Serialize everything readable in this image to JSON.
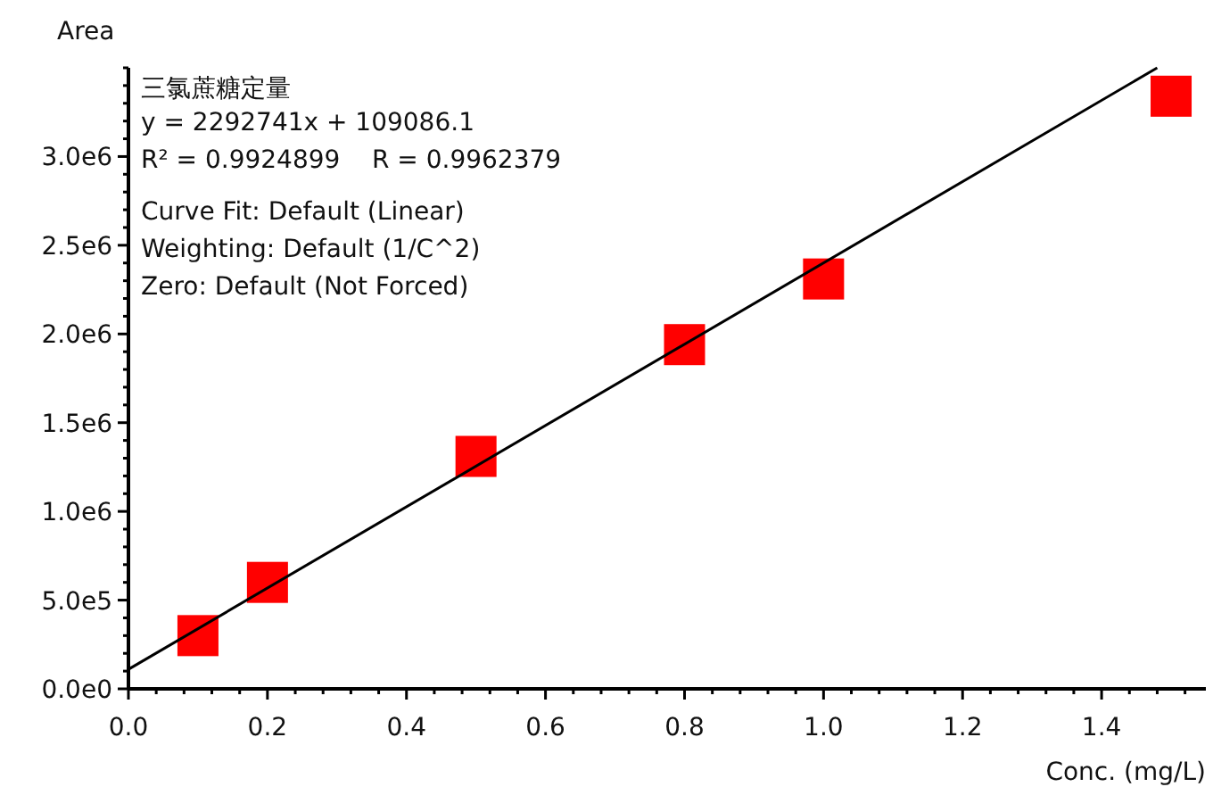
{
  "chart_data": {
    "type": "scatter",
    "title": "三氯蔗糖定量",
    "xlabel": "Conc. (mg/L)",
    "ylabel": "Area",
    "annotations": [
      "y = 2292741x + 109086.1",
      "R² = 0.9924899    R = 0.9962379",
      "Curve Fit: Default (Linear)",
      "Weighting: Default (1/C^2)",
      "Zero: Default (Not Forced)"
    ],
    "xlim": [
      0,
      1.55
    ],
    "ylim": [
      0,
      3500000
    ],
    "xticks": [
      {
        "value": 0,
        "label": "0.0"
      },
      {
        "value": 0.04,
        "label": null
      },
      {
        "value": 0.08,
        "label": null
      },
      {
        "value": 0.12,
        "label": null
      },
      {
        "value": 0.16,
        "label": null
      },
      {
        "value": 0.2,
        "label": "0.2"
      },
      {
        "value": 0.24,
        "label": null
      },
      {
        "value": 0.28,
        "label": null
      },
      {
        "value": 0.32,
        "label": null
      },
      {
        "value": 0.36,
        "label": null
      },
      {
        "value": 0.4,
        "label": "0.4"
      },
      {
        "value": 0.44,
        "label": null
      },
      {
        "value": 0.48,
        "label": null
      },
      {
        "value": 0.52,
        "label": null
      },
      {
        "value": 0.56,
        "label": null
      },
      {
        "value": 0.6,
        "label": "0.6"
      },
      {
        "value": 0.64,
        "label": null
      },
      {
        "value": 0.68,
        "label": null
      },
      {
        "value": 0.72,
        "label": null
      },
      {
        "value": 0.76,
        "label": null
      },
      {
        "value": 0.8,
        "label": "0.8"
      },
      {
        "value": 0.84,
        "label": null
      },
      {
        "value": 0.88,
        "label": null
      },
      {
        "value": 0.92,
        "label": null
      },
      {
        "value": 0.96,
        "label": null
      },
      {
        "value": 1.0,
        "label": "1.0"
      },
      {
        "value": 1.04,
        "label": null
      },
      {
        "value": 1.08,
        "label": null
      },
      {
        "value": 1.12,
        "label": null
      },
      {
        "value": 1.16,
        "label": null
      },
      {
        "value": 1.2,
        "label": "1.2"
      },
      {
        "value": 1.24,
        "label": null
      },
      {
        "value": 1.28,
        "label": null
      },
      {
        "value": 1.32,
        "label": null
      },
      {
        "value": 1.36,
        "label": null
      },
      {
        "value": 1.4,
        "label": "1.4"
      },
      {
        "value": 1.44,
        "label": null
      },
      {
        "value": 1.48,
        "label": null
      },
      {
        "value": 1.52,
        "label": null
      }
    ],
    "yticks": [
      {
        "value": 0,
        "label": "0.0e0"
      },
      {
        "value": 100000,
        "label": null
      },
      {
        "value": 200000,
        "label": null
      },
      {
        "value": 300000,
        "label": null
      },
      {
        "value": 400000,
        "label": null
      },
      {
        "value": 500000,
        "label": "5.0e5"
      },
      {
        "value": 600000,
        "label": null
      },
      {
        "value": 700000,
        "label": null
      },
      {
        "value": 800000,
        "label": null
      },
      {
        "value": 900000,
        "label": null
      },
      {
        "value": 1000000,
        "label": "1.0e6"
      },
      {
        "value": 1100000,
        "label": null
      },
      {
        "value": 1200000,
        "label": null
      },
      {
        "value": 1300000,
        "label": null
      },
      {
        "value": 1400000,
        "label": null
      },
      {
        "value": 1500000,
        "label": "1.5e6"
      },
      {
        "value": 1600000,
        "label": null
      },
      {
        "value": 1700000,
        "label": null
      },
      {
        "value": 1800000,
        "label": null
      },
      {
        "value": 1900000,
        "label": null
      },
      {
        "value": 2000000,
        "label": "2.0e6"
      },
      {
        "value": 2100000,
        "label": null
      },
      {
        "value": 2200000,
        "label": null
      },
      {
        "value": 2300000,
        "label": null
      },
      {
        "value": 2400000,
        "label": null
      },
      {
        "value": 2500000,
        "label": "2.5e6"
      },
      {
        "value": 2600000,
        "label": null
      },
      {
        "value": 2700000,
        "label": null
      },
      {
        "value": 2800000,
        "label": null
      },
      {
        "value": 2900000,
        "label": null
      },
      {
        "value": 3000000,
        "label": "3.0e6"
      },
      {
        "value": 3100000,
        "label": null
      },
      {
        "value": 3200000,
        "label": null
      },
      {
        "value": 3300000,
        "label": null
      },
      {
        "value": 3400000,
        "label": null
      },
      {
        "value": 3500000,
        "label": null
      }
    ],
    "series": [
      {
        "marker": "square",
        "color": "#ff0000",
        "x": [
          0.1,
          0.2,
          0.5,
          0.8,
          1.0,
          1.5
        ],
        "values": [
          300000,
          600000,
          1310000,
          1940000,
          2310000,
          3340000
        ]
      },
      {
        "type": "line",
        "marker": "none",
        "color": "#000000",
        "x": [
          0,
          1.48
        ],
        "values": [
          110000,
          3500000
        ]
      }
    ]
  }
}
